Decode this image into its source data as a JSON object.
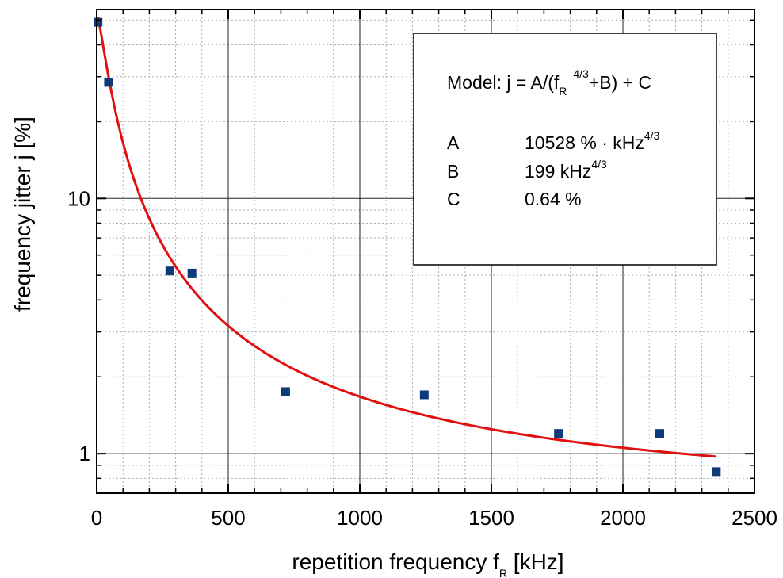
{
  "chart_data": {
    "type": "scatter",
    "xlabel": {
      "main": "repetition frequency f",
      "sub": "R",
      "unit": " [kHz]"
    },
    "ylabel": "frequency jitter j [%]",
    "xlim": [
      0,
      2500
    ],
    "ylim": [
      0.7,
      55
    ],
    "yscale": "log",
    "grid": true,
    "x_ticks": [
      0,
      500,
      1000,
      1500,
      2000,
      2500
    ],
    "x_tick_labels": [
      "0",
      "500",
      "1000",
      "1500",
      "2000",
      "2500"
    ],
    "y_ticks": [
      1,
      10
    ],
    "y_tick_labels": [
      "1",
      "10"
    ],
    "points": [
      {
        "x": 5,
        "y": 49
      },
      {
        "x": 45,
        "y": 28.5
      },
      {
        "x": 278,
        "y": 5.2
      },
      {
        "x": 362,
        "y": 5.1
      },
      {
        "x": 718,
        "y": 1.75
      },
      {
        "x": 1245,
        "y": 1.7
      },
      {
        "x": 1755,
        "y": 1.2
      },
      {
        "x": 2140,
        "y": 1.2
      },
      {
        "x": 2355,
        "y": 0.85
      }
    ],
    "fit": {
      "A": 10528,
      "B": 199,
      "C": 0.64,
      "exponent": 1.3333,
      "x_range": [
        5,
        2355
      ],
      "color": "#e01010"
    },
    "marker_color": "#0e3a7c",
    "legend_position": "top-right",
    "legend": {
      "model_prefix": "Model: j = A/(f",
      "model_sub": "R",
      "model_sup": "4/3",
      "model_suffix": "+B) + C",
      "params": [
        {
          "name": "A",
          "value": "10528 % · kHz",
          "sup": "4/3"
        },
        {
          "name": "B",
          "value": "199 kHz",
          "sup": "4/3"
        },
        {
          "name": "C",
          "value": "0.64 %",
          "sup": ""
        }
      ]
    }
  }
}
